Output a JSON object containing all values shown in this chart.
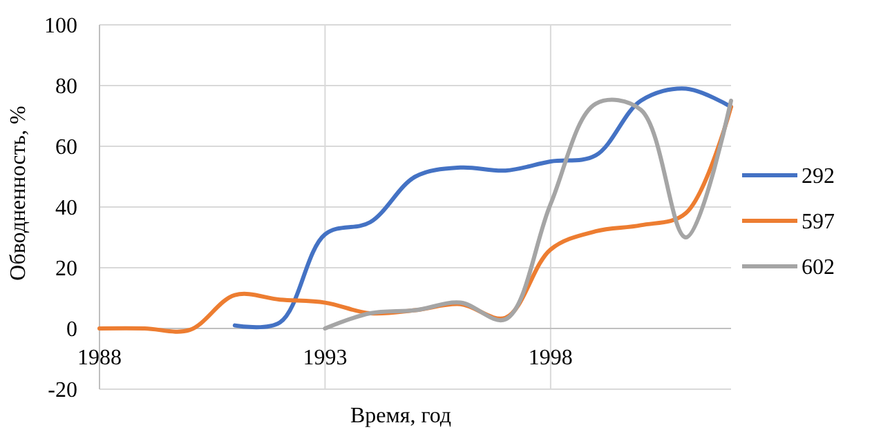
{
  "chart_data": {
    "type": "line",
    "xlabel": "Время, год",
    "ylabel": "Обводненность, %",
    "x": [
      1988,
      1989,
      1990,
      1991,
      1992,
      1993,
      1994,
      1995,
      1996,
      1997,
      1998,
      1999,
      2000,
      2001,
      2002
    ],
    "series": [
      {
        "name": "292",
        "color": "#4472c4",
        "values": [
          null,
          null,
          null,
          1,
          2,
          31,
          35,
          50,
          53,
          52,
          55,
          57,
          75,
          79,
          73
        ]
      },
      {
        "name": "597",
        "color": "#ed7d31",
        "values": [
          0,
          0,
          -0.5,
          11,
          9.5,
          8.5,
          5,
          6,
          8,
          3.5,
          26,
          32,
          34,
          38,
          73
        ]
      },
      {
        "name": "602",
        "color": "#a5a5a5",
        "values": [
          null,
          null,
          null,
          null,
          null,
          0,
          5,
          6,
          8.5,
          3,
          41,
          74,
          72,
          30,
          75
        ]
      }
    ],
    "xlim": [
      1988,
      2002
    ],
    "xticks": [
      1988,
      1993,
      1998
    ],
    "ylim": [
      -20,
      100
    ],
    "yticks": [
      -20,
      0,
      20,
      40,
      60,
      80,
      100
    ],
    "grid": true,
    "legend": "right",
    "line_style": "solid",
    "marker": "none"
  }
}
